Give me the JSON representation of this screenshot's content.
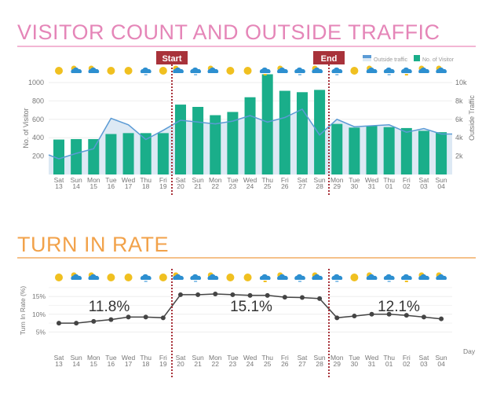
{
  "chart_data": [
    {
      "type": "bar",
      "title": "VISITOR COUNT AND OUTSIDE TRAFFIC",
      "categories": [
        "Sat 13",
        "Sun 14",
        "Mon 15",
        "Tue 16",
        "Wed 17",
        "Thu 18",
        "Fri 19",
        "Sat 20",
        "Sun 21",
        "Mon 22",
        "Tue 23",
        "Wed 24",
        "Thu 25",
        "Fri 26",
        "Sat 27",
        "Sun 28",
        "Mon 29",
        "Tue 30",
        "Wed 31",
        "Thu 01",
        "Fri 02",
        "Sat 03",
        "Sun 04"
      ],
      "weather": [
        "sun",
        "partly",
        "partly",
        "sun",
        "sun",
        "rain",
        "sun",
        "partly",
        "rain",
        "partly",
        "sun",
        "sun",
        "storm",
        "partly",
        "rain",
        "partly",
        "rain",
        "sun",
        "partly",
        "rain",
        "storm",
        "partly",
        "partly"
      ],
      "series": [
        {
          "name": "No. of Visitor",
          "type": "bar",
          "axis": "left",
          "color": "#1aae8a",
          "values": [
            380,
            385,
            385,
            440,
            450,
            450,
            450,
            760,
            735,
            645,
            680,
            840,
            1090,
            910,
            895,
            920,
            550,
            510,
            530,
            515,
            505,
            475,
            460
          ]
        },
        {
          "name": "Outside traffic",
          "type": "area",
          "axis": "right",
          "color": "#5b9bd5",
          "values": [
            1700,
            2300,
            2800,
            6100,
            5400,
            3800,
            4800,
            5900,
            5700,
            5500,
            5800,
            6400,
            5700,
            6200,
            7100,
            4300,
            6000,
            5200,
            5300,
            5400,
            4600,
            5000,
            4400
          ]
        }
      ],
      "ylabel": "No. of Visitor",
      "ylim": [
        0,
        1000
      ],
      "yticks": [
        "200",
        "400",
        "600",
        "800",
        "1000"
      ],
      "y2label": "Outside Traffic",
      "y2lim": [
        0,
        10000
      ],
      "y2ticks": [
        "2k",
        "4k",
        "6k",
        "8k",
        "10k"
      ],
      "legend_position": "top-right",
      "grid": true,
      "markers": [
        {
          "label": "Start",
          "after": "Fri 19"
        },
        {
          "label": "End",
          "after": "Sun 28"
        }
      ]
    },
    {
      "type": "line",
      "title": "TURN IN RATE",
      "ylabel": "Turn In Rate (%)",
      "xlabel": "Day",
      "ylim": [
        0,
        17
      ],
      "yticks": [
        "5%",
        "10%",
        "15%"
      ],
      "values": [
        7.5,
        7.5,
        8,
        8.5,
        9.2,
        9.2,
        9.0,
        15.5,
        15.5,
        15.7,
        15.5,
        15.3,
        15.3,
        14.8,
        14.7,
        14.4,
        9.0,
        9.5,
        10,
        10,
        9.7,
        9.2,
        8.7
      ],
      "color": "#444444",
      "annotations": [
        "11.8%",
        "15.1%",
        "12.1%"
      ]
    }
  ]
}
